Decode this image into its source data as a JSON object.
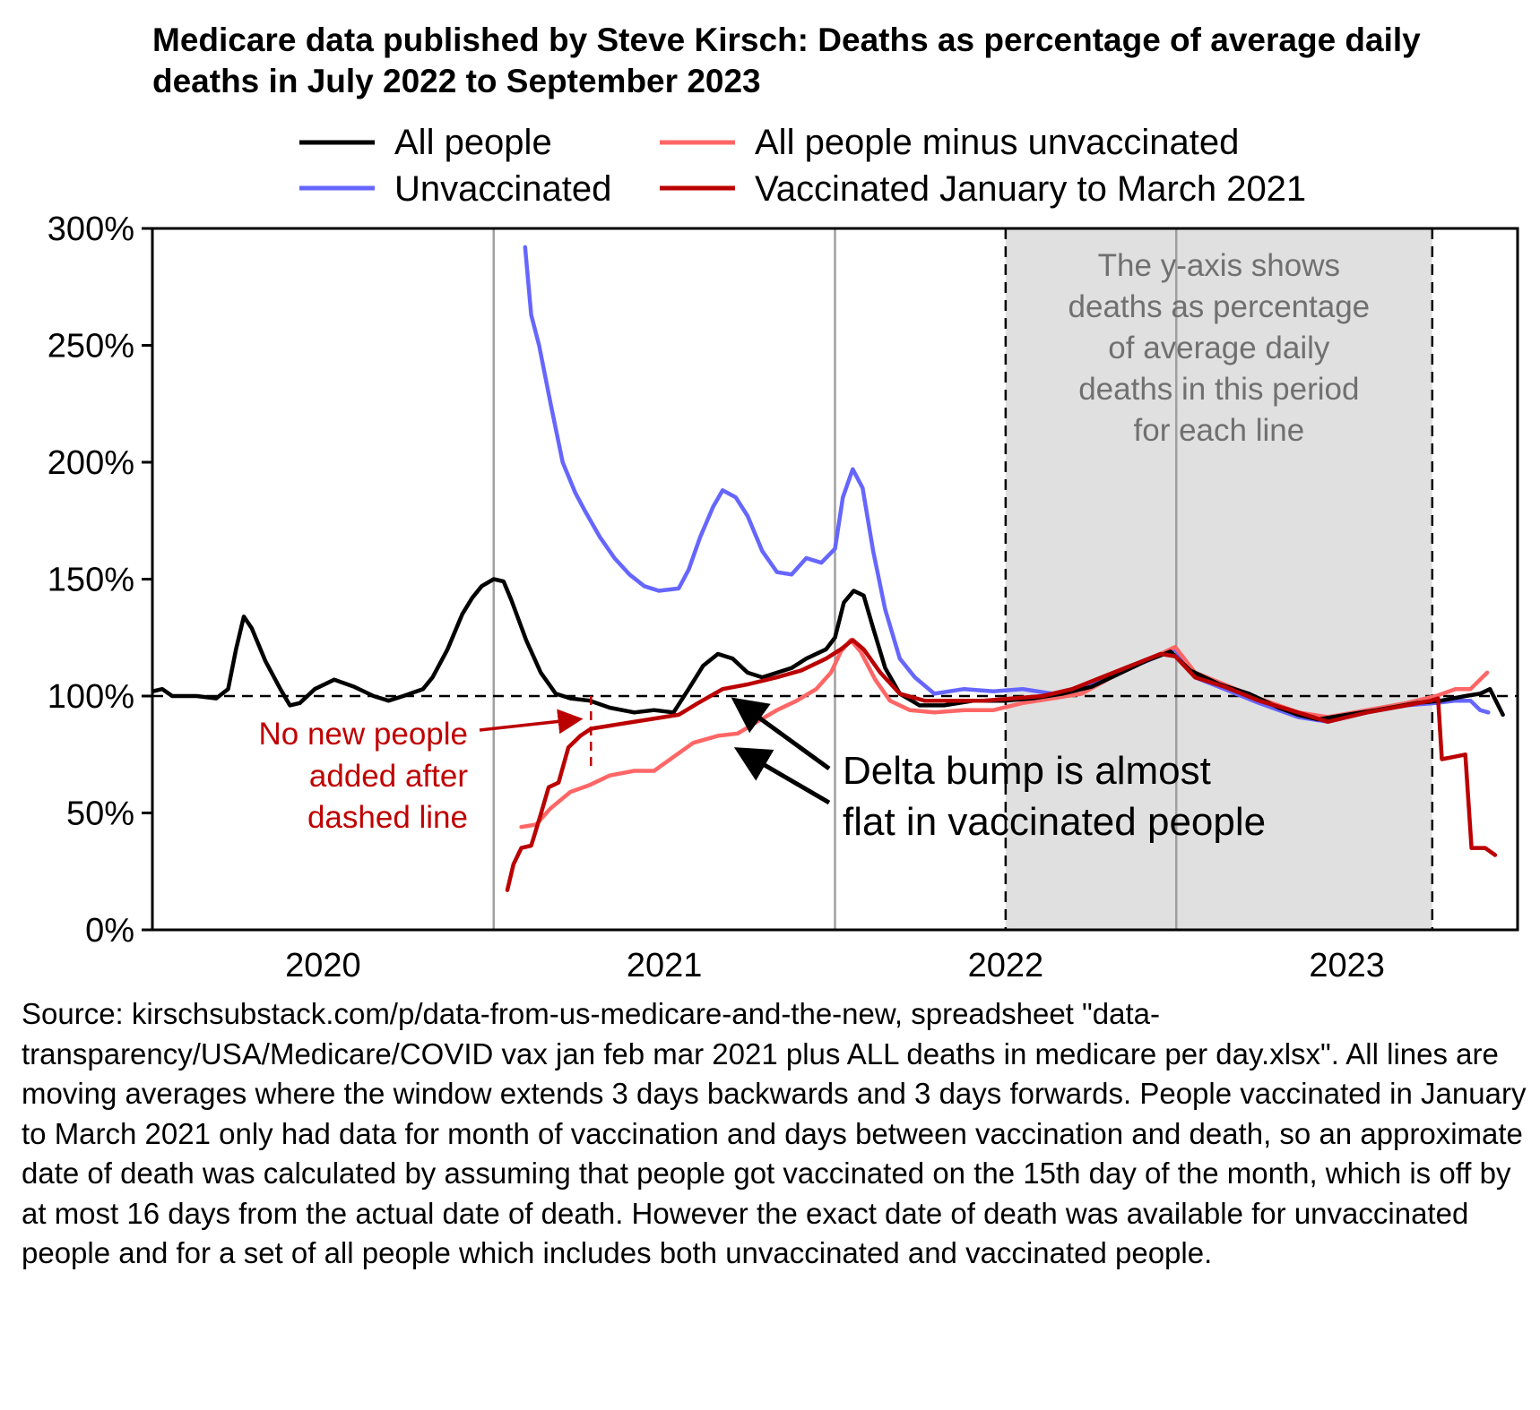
{
  "chart_data": {
    "type": "line",
    "title": "Medicare data published by Steve Kirsch: Deaths as percentage of average daily deaths in July 2022 to September 2023",
    "xlabel": "",
    "ylabel": "",
    "xlim": [
      2020.0,
      2024.0
    ],
    "ylim": [
      0,
      300
    ],
    "y_ticks": [
      0,
      50,
      100,
      150,
      200,
      250,
      300
    ],
    "y_tick_labels": [
      "0%",
      "50%",
      "100%",
      "150%",
      "200%",
      "250%",
      "300%"
    ],
    "x_ticks": [
      2020.5,
      2021.5,
      2022.5,
      2023.5
    ],
    "x_tick_labels": [
      "2020",
      "2021",
      "2022",
      "2023"
    ],
    "year_boundary_lines": [
      2021.0,
      2022.0,
      2023.0
    ],
    "reference_line_y": 100,
    "shaded_period": {
      "start": 2022.5,
      "end": 2023.75
    },
    "legend": {
      "placement": "top",
      "entries": [
        {
          "label": "All people",
          "color": "#000000"
        },
        {
          "label": "Unvaccinated",
          "color": "#6666ff"
        },
        {
          "label": "All people minus unvaccinated",
          "color": "#ff6666"
        },
        {
          "label": "Vaccinated January to March 2021",
          "color": "#bb0000"
        }
      ]
    },
    "series": [
      {
        "name": "Unvaccinated",
        "color": "#6666ff",
        "x": [
          2021.092,
          2021.11,
          2021.133,
          2021.167,
          2021.202,
          2021.239,
          2021.268,
          2021.311,
          2021.354,
          2021.398,
          2021.441,
          2021.484,
          2021.542,
          2021.571,
          2021.605,
          2021.643,
          2021.671,
          2021.709,
          2021.744,
          2021.787,
          2021.83,
          2021.873,
          2021.916,
          2021.96,
          2022.0,
          2022.023,
          2022.052,
          2022.081,
          2022.112,
          2022.147,
          2022.19,
          2022.234,
          2022.291,
          2022.378,
          2022.464,
          2022.55,
          2022.637,
          2022.723,
          2022.81,
          2022.896,
          2022.997,
          2023.055,
          2023.141,
          2023.242,
          2023.357,
          2023.444,
          2023.559,
          2023.674,
          2023.761,
          2023.818,
          2023.862,
          2023.89,
          2023.914
        ],
        "y": [
          292,
          263,
          250,
          225,
          200,
          187,
          179,
          168,
          159,
          152,
          147,
          145,
          146,
          154,
          168,
          181,
          188,
          185,
          177,
          162,
          153,
          152,
          159,
          157,
          163,
          185,
          197,
          189,
          162,
          137,
          116,
          108,
          101,
          103,
          102,
          103,
          101,
          103,
          108,
          114,
          120,
          108,
          103,
          97,
          91,
          89,
          93,
          96,
          97,
          98,
          98,
          94,
          93
        ]
      },
      {
        "name": "All people minus unvaccinated",
        "color": "#ff6666",
        "x": [
          2021.081,
          2021.124,
          2021.167,
          2021.225,
          2021.282,
          2021.34,
          2021.412,
          2021.47,
          2021.527,
          2021.585,
          2021.657,
          2021.715,
          2021.772,
          2021.83,
          2021.888,
          2021.945,
          2021.988,
          2022.017,
          2022.046,
          2022.075,
          2022.118,
          2022.161,
          2022.219,
          2022.291,
          2022.378,
          2022.464,
          2022.55,
          2022.637,
          2022.723,
          2022.81,
          2022.896,
          2022.997,
          2023.055,
          2023.141,
          2023.242,
          2023.357,
          2023.444,
          2023.559,
          2023.674,
          2023.761,
          2023.818,
          2023.862,
          2023.89,
          2023.911
        ],
        "y": [
          44,
          45,
          52,
          59,
          62,
          66,
          68,
          68,
          74,
          80,
          83,
          84,
          89,
          94,
          98,
          103,
          110,
          119,
          124,
          119,
          107,
          98,
          94,
          93,
          94,
          94,
          97,
          99,
          101,
          108,
          114,
          121,
          110,
          105,
          99,
          93,
          91,
          94,
          97,
          100,
          103,
          103,
          107,
          110
        ]
      },
      {
        "name": "All people",
        "color": "#000000",
        "x": [
          2020.0,
          2020.029,
          2020.058,
          2020.13,
          2020.187,
          2020.222,
          2020.245,
          2020.268,
          2020.291,
          2020.331,
          2020.375,
          2020.403,
          2020.432,
          2020.476,
          2020.533,
          2020.591,
          2020.648,
          2020.692,
          2020.735,
          2020.793,
          2020.821,
          2020.865,
          2020.908,
          2020.937,
          2020.965,
          2021.0,
          2021.029,
          2021.052,
          2021.095,
          2021.138,
          2021.182,
          2021.225,
          2021.282,
          2021.34,
          2021.412,
          2021.47,
          2021.527,
          2021.571,
          2021.614,
          2021.657,
          2021.7,
          2021.744,
          2021.787,
          2021.83,
          2021.873,
          2021.916,
          2021.974,
          2022.0,
          2022.026,
          2022.055,
          2022.084,
          2022.112,
          2022.147,
          2022.19,
          2022.248,
          2022.32,
          2022.406,
          2022.493,
          2022.579,
          2022.666,
          2022.752,
          2022.839,
          2022.911,
          2022.983,
          2023.04,
          2023.127,
          2023.213,
          2023.3,
          2023.357,
          2023.415,
          2023.501,
          2023.588,
          2023.703,
          2023.775,
          2023.847,
          2023.89,
          2023.919,
          2023.957
        ],
        "y": [
          102,
          103,
          100,
          100,
          99,
          103,
          120,
          134,
          129,
          115,
          103,
          96,
          97,
          103,
          107,
          104,
          100,
          98,
          100,
          103,
          108,
          120,
          135,
          142,
          147,
          150,
          149,
          141,
          124,
          110,
          101,
          99,
          98,
          95,
          93,
          94,
          93,
          103,
          113,
          118,
          116,
          110,
          108,
          110,
          112,
          116,
          120,
          125,
          140,
          145,
          143,
          129,
          112,
          101,
          96,
          96,
          98,
          98,
          99,
          101,
          104,
          110,
          115,
          119,
          111,
          105,
          101,
          95,
          92,
          90,
          92,
          94,
          97,
          98,
          100,
          101,
          103,
          92
        ]
      },
      {
        "name": "Vaccinated January to March 2021",
        "color": "#bb0000",
        "x": [
          2021.04,
          2021.058,
          2021.081,
          2021.11,
          2021.133,
          2021.161,
          2021.19,
          2021.219,
          2021.254,
          2021.285,
          2021.369,
          2021.455,
          2021.542,
          2021.599,
          2021.671,
          2021.744,
          2021.83,
          2021.902,
          2021.974,
          2022.017,
          2022.052,
          2022.084,
          2022.133,
          2022.19,
          2022.262,
          2022.349,
          2022.435,
          2022.522,
          2022.608,
          2022.695,
          2022.781,
          2022.867,
          2022.954,
          2022.997,
          2023.055,
          2023.141,
          2023.242,
          2023.357,
          2023.444,
          2023.559,
          2023.674,
          2023.746,
          2023.767,
          2023.778,
          2023.813,
          2023.847,
          2023.865,
          2023.905,
          2023.934
        ],
        "y": [
          17,
          28,
          35,
          36,
          47,
          61,
          63,
          78,
          83,
          86,
          88,
          90,
          92,
          97,
          103,
          105,
          108,
          111,
          116,
          120,
          124,
          120,
          110,
          101,
          98,
          98,
          98,
          99,
          100,
          103,
          108,
          113,
          118,
          117,
          108,
          104,
          98,
          93,
          89,
          93,
          96,
          98,
          99,
          73,
          74,
          75,
          35,
          35,
          32
        ]
      }
    ],
    "annotations": {
      "shaded_note": [
        "The y-axis shows",
        "deaths as percentage",
        "of average daily",
        "deaths in this period",
        "for each line"
      ],
      "no_new_people": {
        "lines": [
          "No new people",
          "added after",
          "dashed line"
        ],
        "dashed_line_x": 2021.285,
        "dashed_line_y_range": [
          70,
          100
        ],
        "arrow_target": {
          "x": 2021.27,
          "y": 90
        },
        "color": "#bb0000"
      },
      "delta_bump": {
        "lines": [
          "Delta bump is almost",
          "flat in vaccinated people"
        ],
        "arrow_targets": [
          {
            "x": 2021.68,
            "y": 101
          },
          {
            "x": 2021.69,
            "y": 80
          }
        ]
      }
    }
  },
  "source_note": "Source: kirschsubstack.com/p/data-from-us-medicare-and-the-new, spreadsheet \"data-transparency/USA/Medicare/COVID vax jan feb mar 2021 plus ALL deaths in medicare per day.xlsx\". All lines are moving averages where the window extends 3 days backwards and 3 days forwards. People vaccinated in January to March 2021 only had data for month of vaccination and days between vaccination and death, so an approximate date of death was calculated by assuming that people got vaccinated on the 15th day of the month, which is off by at most 16 days from the actual date of death. However the exact date of death was available for unvaccinated people and for a set of all people which includes both unvaccinated and vaccinated people."
}
